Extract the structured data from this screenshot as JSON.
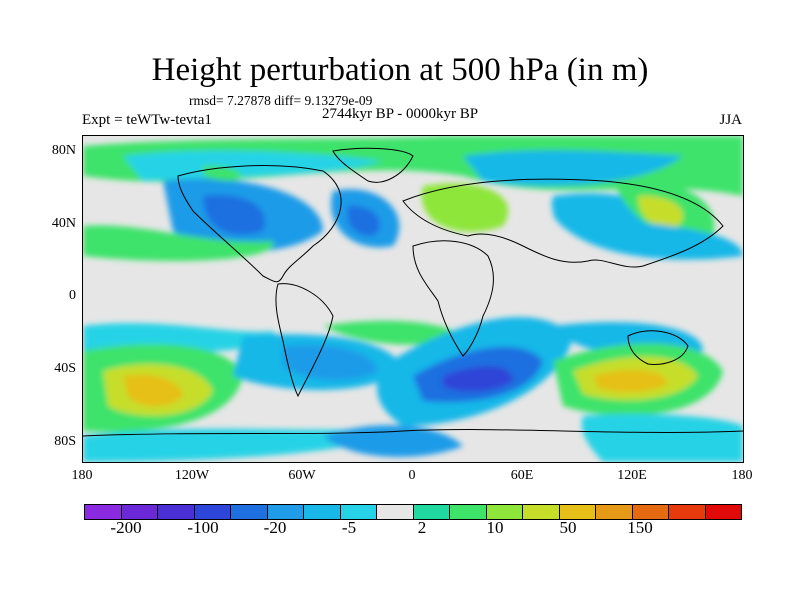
{
  "title": "Height perturbation at 500 hPa (in m)",
  "stats": "rmsd= 7.27878  diff= 9.13279e-09",
  "subtitle": "2744kyr BP - 0000kyr BP",
  "experiment": "Expt = teWTw-tevta1",
  "season": "JJA",
  "y_ticks": [
    "80N",
    "40N",
    "0",
    "40S",
    "80S"
  ],
  "x_ticks": [
    "180",
    "120W",
    "60W",
    "0",
    "60E",
    "120E",
    "180"
  ],
  "colorbar_labels": [
    "-200",
    "-100",
    "-20",
    "-5",
    "2",
    "10",
    "50",
    "150"
  ],
  "palette": [
    "#8a2be2",
    "#6a28d8",
    "#4a2fd6",
    "#2d45d8",
    "#1e6fe0",
    "#1f9be8",
    "#18b8e8",
    "#26d3e6",
    "#e6e6e6",
    "#1fd9a0",
    "#3ee36a",
    "#8ee63a",
    "#c6de2a",
    "#e6c018",
    "#e69a18",
    "#e66a12",
    "#e63a0e",
    "#e00a0a"
  ],
  "land_color": "#e6e6e6"
}
